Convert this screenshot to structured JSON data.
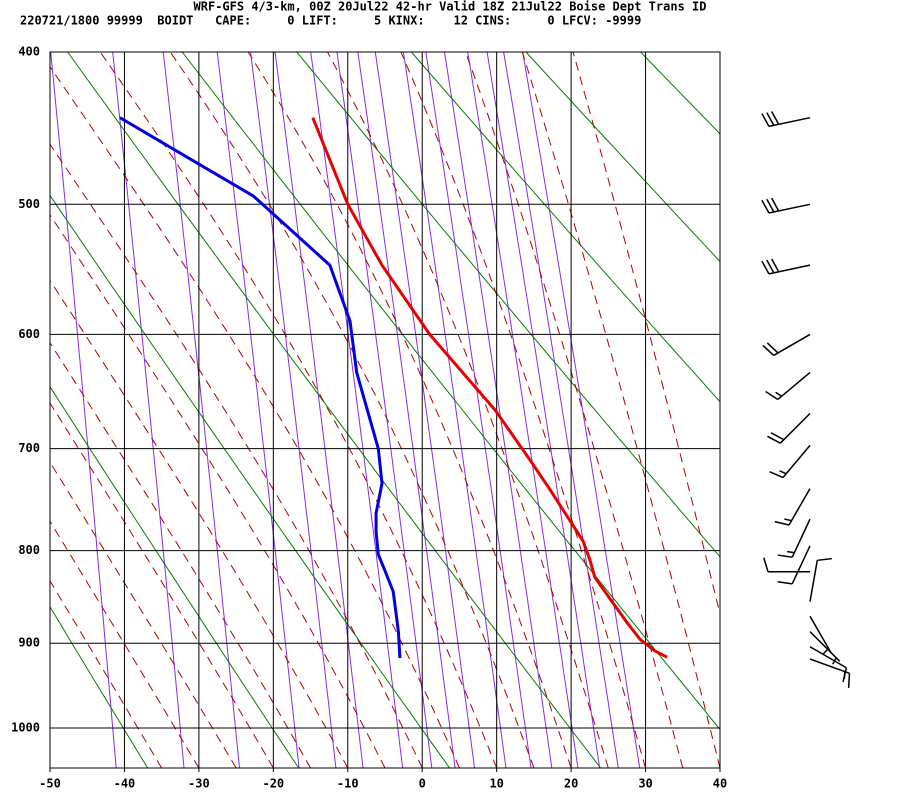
{
  "chart_data": {
    "type": "skewt",
    "title": "WRF-GFS 4/3-km, 00Z 20Jul22 42-hr Valid 18Z 21Jul22 Boise Dept Trans ID",
    "subtitle": "220721/1800 99999  BOIDT   CAPE:     0 LIFT:     5 KINX:    12 CINS:     0 LFCV: -9999",
    "xlim": [
      -50,
      40
    ],
    "xticks": [
      -50,
      -40,
      -30,
      -20,
      -10,
      0,
      10,
      20,
      30,
      40
    ],
    "ylim": [
      1050,
      400
    ],
    "yticks": [
      400,
      500,
      600,
      700,
      800,
      900,
      1000
    ],
    "grid": true,
    "series": [
      {
        "color": "#e80000",
        "x": [
          32.9,
          31.3,
          29.3,
          27.6,
          25.5,
          23.2,
          22.5,
          21.6,
          16.9,
          14.5,
          9.8,
          1.0,
          -5.4,
          -10.0,
          -14.7
        ],
        "values": [
          916,
          909,
          896,
          878,
          854,
          828,
          809,
          790,
          736,
          711,
          665,
          600,
          545,
          500,
          441
        ]
      },
      {
        "color": "#0000e0",
        "x": [
          -3.0,
          -3.2,
          -3.9,
          -5.0,
          -5.9,
          -6.2,
          -6.2,
          -5.4,
          -5.7,
          -5.9,
          -8.8,
          -9.7,
          -12.4,
          -22.7,
          -30.3,
          -40.6
        ],
        "values": [
          917,
          887,
          843,
          821,
          804,
          781,
          762,
          733,
          713,
          700,
          632,
          589,
          545,
          494,
          471,
          441
        ]
      }
    ],
    "winds": {
      "pressure": [
        441,
        500,
        545,
        600,
        632,
        668,
        697,
        738,
        768,
        795,
        822,
        854,
        870,
        887,
        904,
        918
      ],
      "direction": [
        258,
        258,
        258,
        240,
        230,
        225,
        220,
        210,
        205,
        205,
        270,
        10,
        150,
        135,
        120,
        110
      ],
      "speed": [
        30,
        30,
        30,
        20,
        15,
        20,
        15,
        15,
        15,
        10,
        10,
        10,
        5,
        5,
        10,
        15
      ]
    }
  }
}
